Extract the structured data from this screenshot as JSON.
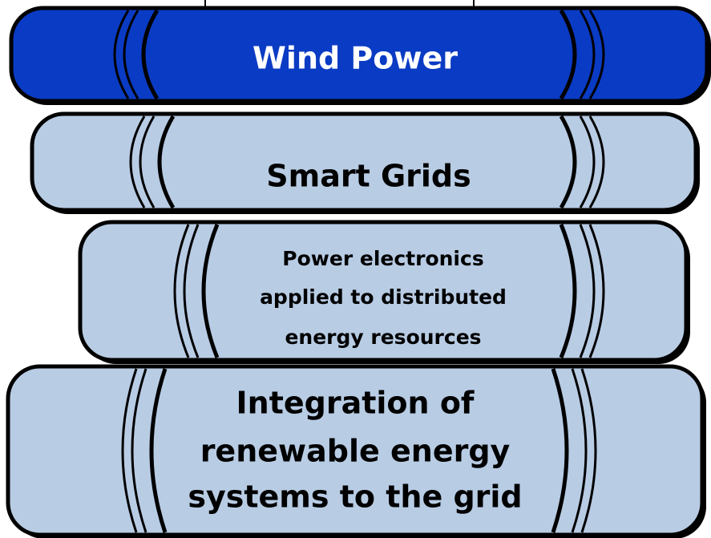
{
  "books": [
    {
      "lines": [
        "Wind Power"
      ]
    },
    {
      "lines": [
        "Smart Grids"
      ]
    },
    {
      "lines": [
        "Power electronics",
        "applied to distributed",
        "energy resources"
      ]
    },
    {
      "lines": [
        "Integration of",
        "renewable energy",
        "systems to the grid"
      ]
    }
  ]
}
